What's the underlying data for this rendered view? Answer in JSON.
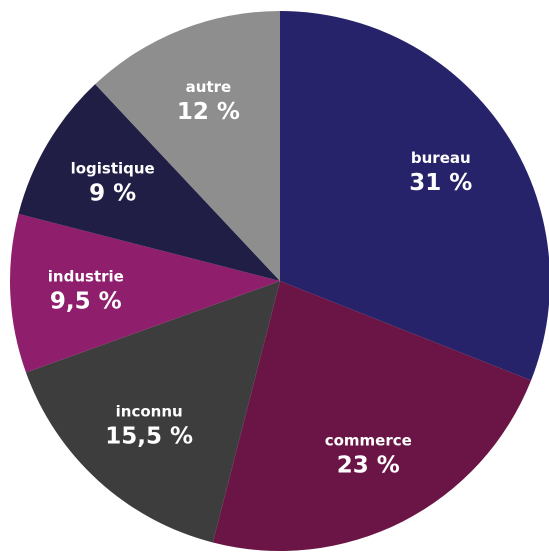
{
  "chart_data": {
    "type": "pie",
    "categories": [
      "bureau",
      "commerce",
      "inconnu",
      "industrie",
      "logistique",
      "autre"
    ],
    "values": [
      31,
      23,
      15.5,
      9.5,
      9,
      12
    ],
    "value_labels": [
      "31 %",
      "23 %",
      "15,5 %",
      "9,5 %",
      "9 %",
      "12 %"
    ],
    "colors": [
      "#27236a",
      "#6a1546",
      "#3d3d3d",
      "#8f1f6c",
      "#201e45",
      "#8e8e8e"
    ]
  }
}
